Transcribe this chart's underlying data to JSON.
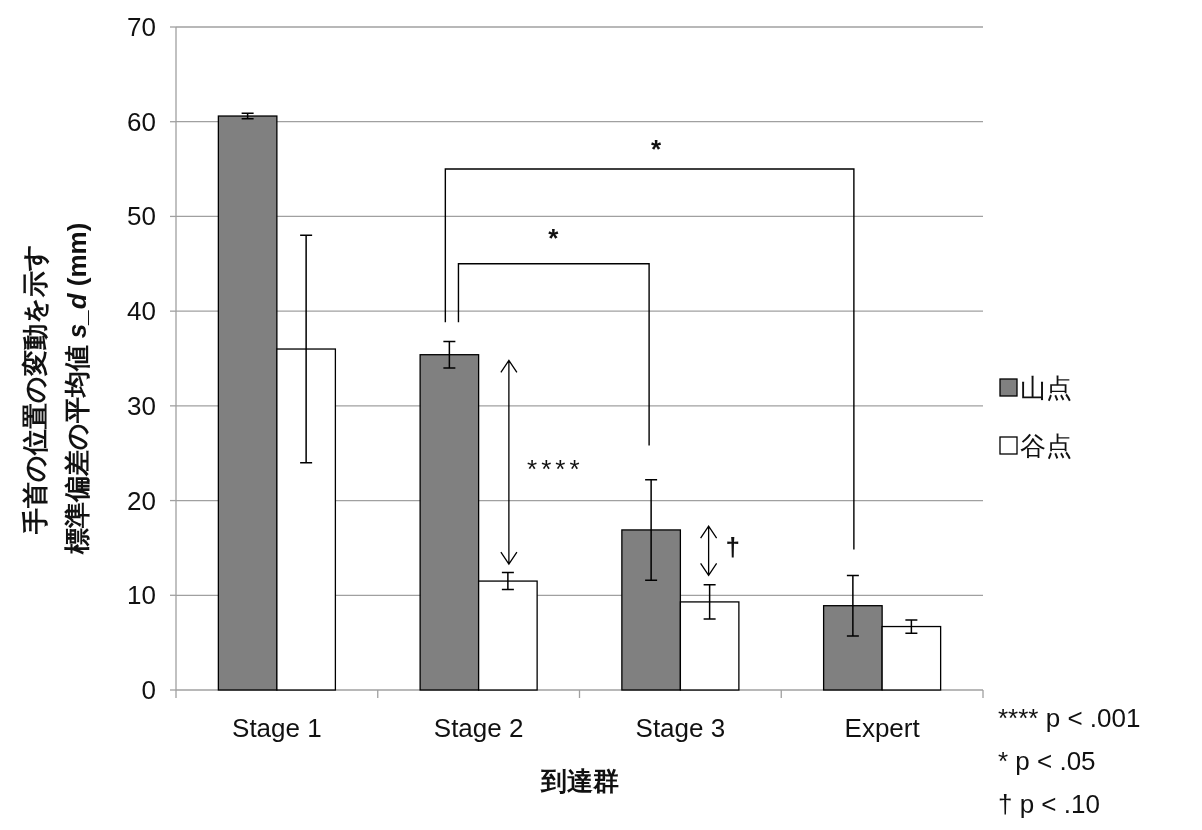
{
  "chart_data": {
    "type": "bar",
    "xlabel": "到達群",
    "ylabel": "手首の位置の変動を示す標準偏差の平均値 *s_d* (mm)",
    "categories": [
      "Stage 1",
      "Stage 2",
      "Stage 3",
      "Expert"
    ],
    "series": [
      {
        "name": "山点",
        "color": "#808080",
        "values": [
          60.6,
          35.4,
          16.9,
          8.9
        ],
        "errors": [
          0.3,
          1.4,
          5.3,
          3.2
        ]
      },
      {
        "name": "谷点",
        "color": "#ffffff",
        "values": [
          36.0,
          11.5,
          9.3,
          6.7
        ],
        "errors": [
          12.0,
          0.9,
          1.8,
          0.7
        ]
      }
    ],
    "ylim": [
      0,
      70
    ],
    "yticks": [
      0,
      10,
      20,
      30,
      40,
      50,
      60,
      70
    ],
    "grid": "y",
    "legend": "right",
    "annotations": [
      "*",
      "*",
      "****",
      "†",
      "**** p < .001",
      "* p < .05",
      "† p < .10"
    ]
  }
}
